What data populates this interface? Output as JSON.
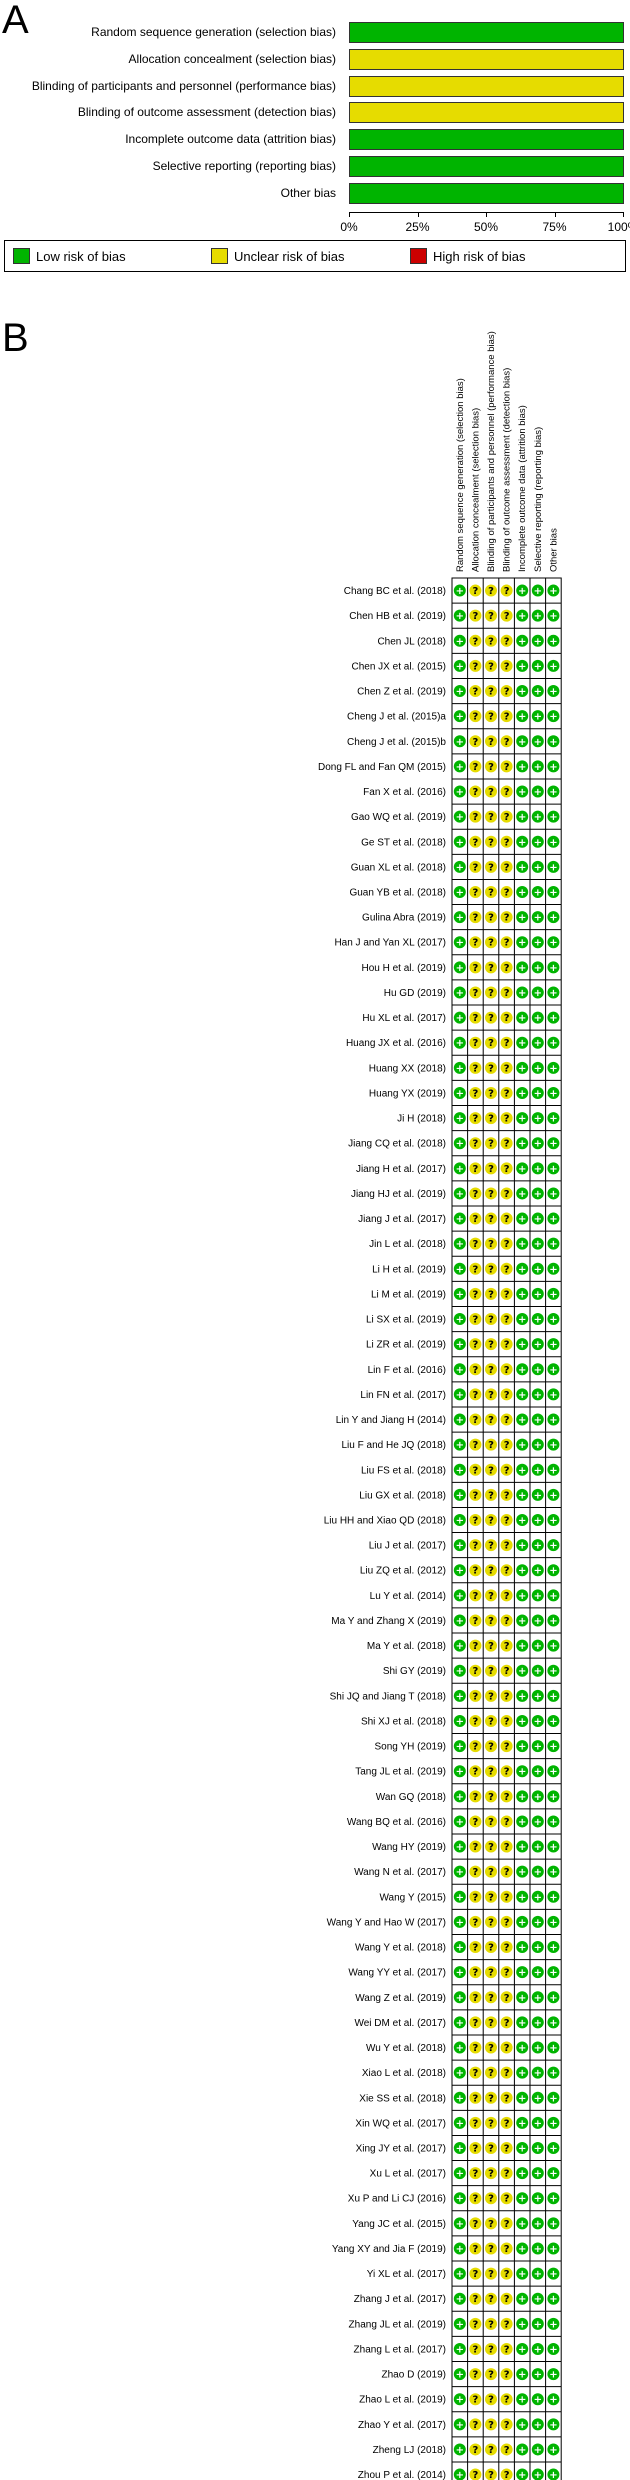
{
  "panel_a": {
    "letter": "A"
  },
  "panel_b": {
    "letter": "B"
  },
  "colors": {
    "low": "#00b400",
    "unclear": "#e6dc00",
    "high": "#cc0000"
  },
  "symbols": {
    "low": "+",
    "unclear": "?",
    "high": "-"
  },
  "chart_data": [
    {
      "type": "bar",
      "orientation": "horizontal",
      "stacked": true,
      "categories": [
        "Random sequence generation (selection bias)",
        "Allocation concealment (selection bias)",
        "Blinding of participants and personnel (performance bias)",
        "Blinding of outcome assessment (detection bias)",
        "Incomplete outcome data (attrition bias)",
        "Selective reporting (reporting bias)",
        "Other bias"
      ],
      "series": [
        {
          "name": "Low risk of bias",
          "color": "#00b400",
          "values": [
            100,
            0,
            0,
            0,
            100,
            100,
            100
          ]
        },
        {
          "name": "Unclear risk of bias",
          "color": "#e6dc00",
          "values": [
            0,
            100,
            100,
            100,
            0,
            0,
            0
          ]
        },
        {
          "name": "High risk of bias",
          "color": "#cc0000",
          "values": [
            0,
            0,
            0,
            0,
            0,
            0,
            0
          ]
        }
      ],
      "xticks": [
        "0%",
        "25%",
        "50%",
        "75%",
        "100%"
      ],
      "xlim": [
        0,
        100
      ],
      "legend": {
        "placement": "bottom",
        "items": [
          {
            "label": "Low risk of bias",
            "color": "#00b400"
          },
          {
            "label": "Unclear risk of bias",
            "color": "#e6dc00"
          },
          {
            "label": "High risk of bias",
            "color": "#cc0000"
          }
        ]
      }
    },
    {
      "type": "table",
      "columns": [
        "Random sequence generation (selection bias)",
        "Allocation concealment (selection bias)",
        "Blinding of participants and personnel (performance bias)",
        "Blinding of outcome assessment (detection bias)",
        "Incomplete outcome data (attrition bias)",
        "Selective reporting (reporting bias)",
        "Other bias"
      ],
      "row_pattern": [
        "low",
        "unclear",
        "unclear",
        "unclear",
        "low",
        "low",
        "low"
      ],
      "rows": [
        "Chang BC et al. (2018)",
        "Chen HB et al. (2019)",
        "Chen JL (2018)",
        "Chen JX et al. (2015)",
        "Chen Z et al. (2019)",
        "Cheng J et al. (2015)a",
        "Cheng J et al. (2015)b",
        "Dong FL and Fan QM (2015)",
        "Fan X et al. (2016)",
        "Gao WQ et al. (2019)",
        "Ge ST et al. (2018)",
        "Guan XL et al. (2018)",
        "Guan YB et al. (2018)",
        "Gulina Abra (2019)",
        "Han J and Yan XL (2017)",
        "Hou H et al. (2019)",
        "Hu GD (2019)",
        "Hu XL et al. (2017)",
        "Huang JX et al. (2016)",
        "Huang XX (2018)",
        "Huang YX (2019)",
        "Ji H (2018)",
        "Jiang CQ et al. (2018)",
        "Jiang H et al. (2017)",
        "Jiang HJ et al. (2019)",
        "Jiang J et al. (2017)",
        "Jin L et al. (2018)",
        "Li H et al. (2019)",
        "Li M et al. (2019)",
        "Li SX et al. (2019)",
        "Li ZR et al. (2019)",
        "Lin F et al. (2016)",
        "Lin FN et al. (2017)",
        "Lin Y and Jiang H (2014)",
        "Liu F and He JQ (2018)",
        "Liu FS et al. (2018)",
        "Liu GX et al. (2018)",
        "Liu HH and Xiao QD (2018)",
        "Liu J et al. (2017)",
        "Liu ZQ et al. (2012)",
        "Lu Y et al. (2014)",
        "Ma Y and Zhang X (2019)",
        "Ma Y et al. (2018)",
        "Shi GY (2019)",
        "Shi JQ and Jiang T (2018)",
        "Shi XJ et al. (2018)",
        "Song YH (2019)",
        "Tang JL et al. (2019)",
        "Wan GQ (2018)",
        "Wang BQ et al. (2016)",
        "Wang HY (2019)",
        "Wang N et al. (2017)",
        "Wang Y (2015)",
        "Wang Y and Hao W (2017)",
        "Wang Y et al. (2018)",
        "Wang YY et al. (2017)",
        "Wang Z et al. (2019)",
        "Wei DM et al. (2017)",
        "Wu Y et al. (2018)",
        "Xiao L et al. (2018)",
        "Xie SS et al. (2018)",
        "Xin WQ et al. (2017)",
        "Xing JY et al. (2017)",
        "Xu L et al. (2017)",
        "Xu P and Li CJ (2016)",
        "Yang JC et al. (2015)",
        "Yang XY and Jia F (2019)",
        "Yi XL et al. (2017)",
        "Zhang J et al. (2017)",
        "Zhang JL et al. (2019)",
        "Zhang L et al. (2017)",
        "Zhao D (2019)",
        "Zhao L et al. (2019)",
        "Zhao Y et al. (2017)",
        "Zheng LJ (2018)",
        "Zhou P et al. (2014)"
      ]
    }
  ]
}
